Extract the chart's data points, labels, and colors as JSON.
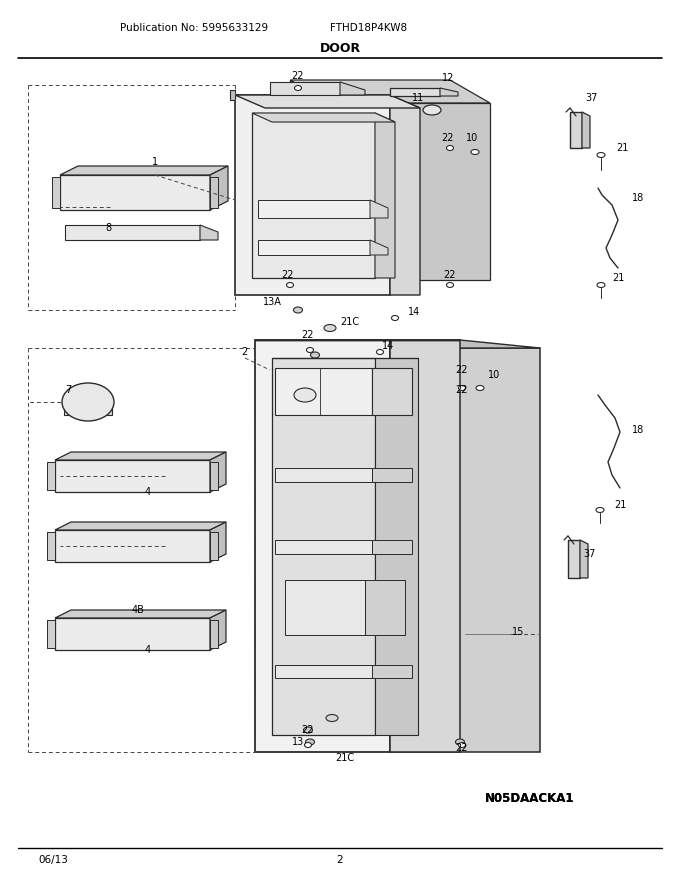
{
  "pub_no": "Publication No: 5995633129",
  "model": "FTHD18P4KW8",
  "section": "DOOR",
  "page_date": "06/13",
  "page_num": "2",
  "diagram_id": "N05DAACKA1",
  "bg_color": "#ffffff",
  "lc": "#2a2a2a",
  "tc": "#000000",
  "fig_width": 6.8,
  "fig_height": 8.8,
  "dpi": 100
}
